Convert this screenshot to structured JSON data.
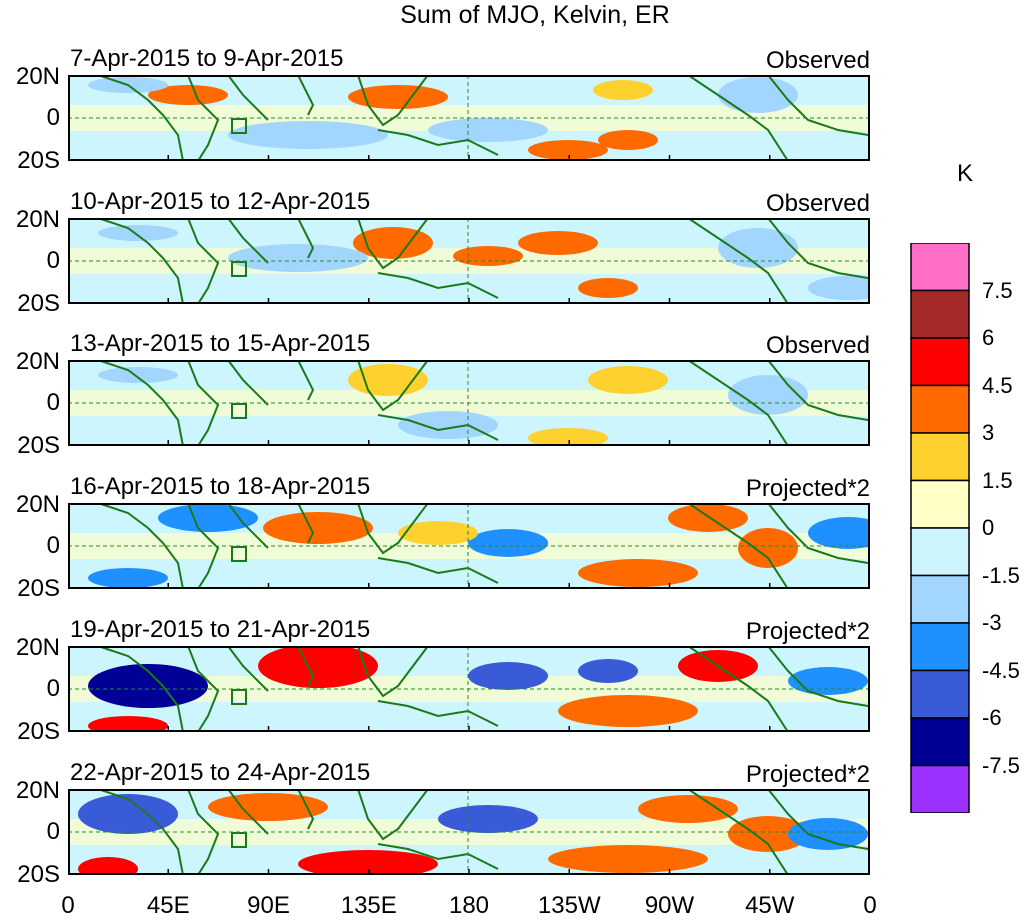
{
  "title": "Sum of MJO, Kelvin, ER",
  "colorbar": {
    "unit": "K",
    "colors": [
      "#ff6ec7",
      "#a52a2a",
      "#ff0000",
      "#ff6a00",
      "#ffd12e",
      "#ffffc6",
      "#cdf5fd",
      "#a3d6ff",
      "#1e90ff",
      "#3a5bd8",
      "#000096",
      "#9b30ff"
    ],
    "labels": [
      "7.5",
      "6",
      "4.5",
      "3",
      "1.5",
      "0",
      "-1.5",
      "-3",
      "-4.5",
      "-6",
      "-7.5"
    ]
  },
  "axes": {
    "y_ticks": [
      "20N",
      "0",
      "20S"
    ],
    "x_ticks": [
      "0",
      "45E",
      "90E",
      "135E",
      "180",
      "135W",
      "90W",
      "45W",
      "0"
    ]
  },
  "panels": [
    {
      "dates": "7-Apr-2015 to 9-Apr-2015",
      "label": "Observed"
    },
    {
      "dates": "10-Apr-2015 to 12-Apr-2015",
      "label": "Observed"
    },
    {
      "dates": "13-Apr-2015 to 15-Apr-2015",
      "label": "Observed"
    },
    {
      "dates": "16-Apr-2015 to 18-Apr-2015",
      "label": "Projected*2"
    },
    {
      "dates": "19-Apr-2015 to 21-Apr-2015",
      "label": "Projected*2"
    },
    {
      "dates": "22-Apr-2015 to 24-Apr-2015",
      "label": "Projected*2"
    }
  ]
}
